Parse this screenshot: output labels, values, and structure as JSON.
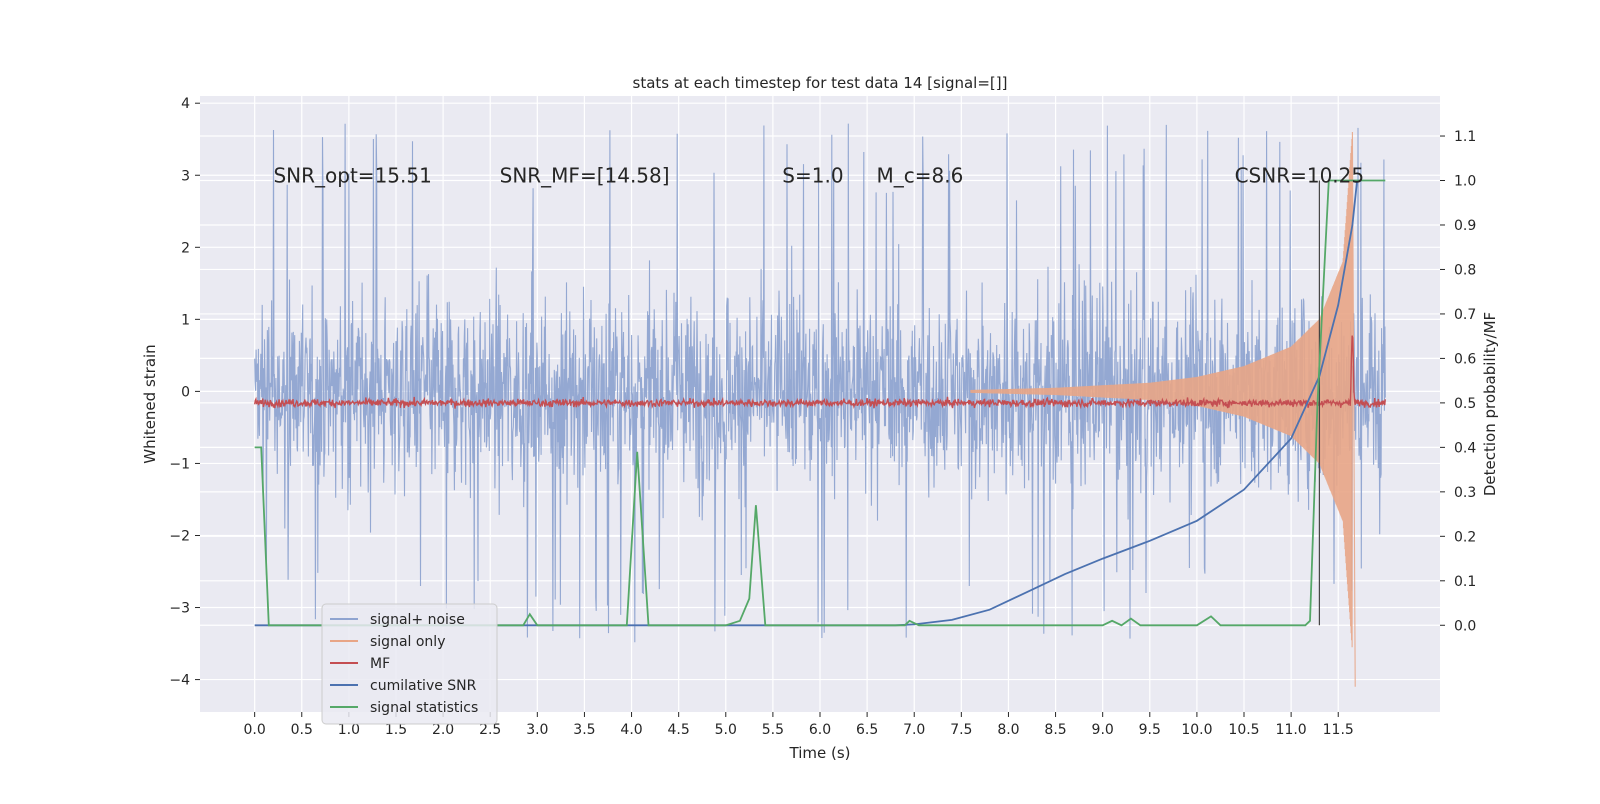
{
  "chart_data": {
    "type": "line",
    "title": "stats at each timestep for test data 14 [signal=[]]",
    "xlabel": "Time (s)",
    "ylabel_left": "Whitened strain",
    "ylabel_right": "Detection probability/MF",
    "xlim": [
      -0.58,
      12.58
    ],
    "ylim_left": [
      -4.45,
      4.1
    ],
    "ylim_right": [
      -0.195,
      1.19
    ],
    "x_ticks": [
      0.0,
      0.5,
      1.0,
      1.5,
      2.0,
      2.5,
      3.0,
      3.5,
      4.0,
      4.5,
      5.0,
      5.5,
      6.0,
      6.5,
      7.0,
      7.5,
      8.0,
      8.5,
      9.0,
      9.5,
      10.0,
      10.5,
      11.0,
      11.5
    ],
    "x_tick_labels": [
      "0.0",
      "0.5",
      "1.0",
      "1.5",
      "2.0",
      "2.5",
      "3.0",
      "3.5",
      "4.0",
      "4.5",
      "5.0",
      "5.5",
      "6.0",
      "6.5",
      "7.0",
      "7.5",
      "8.0",
      "8.5",
      "9.0",
      "9.5",
      "10.0",
      "10.5",
      "11.0",
      "11.5"
    ],
    "y_left_ticks": [
      -4,
      -3,
      -2,
      -1,
      0,
      1,
      2,
      3,
      4
    ],
    "y_left_tick_labels": [
      "−4",
      "−3",
      "−2",
      "−1",
      "0",
      "1",
      "2",
      "3",
      "4"
    ],
    "y_right_ticks": [
      0.0,
      0.1,
      0.2,
      0.3,
      0.4,
      0.5,
      0.6,
      0.7,
      0.8,
      0.9,
      1.0,
      1.1
    ],
    "y_right_tick_labels": [
      "0.0",
      "0.1",
      "0.2",
      "0.3",
      "0.4",
      "0.5",
      "0.6",
      "0.7",
      "0.8",
      "0.9",
      "1.0",
      "1.1"
    ],
    "grid": true,
    "legend_position": "lower-left",
    "annotations": [
      {
        "label": "SNR_opt=15.51",
        "x": 0.2,
        "y": 3.0
      },
      {
        "label": "SNR_MF=[14.58]",
        "x": 2.6,
        "y": 3.0
      },
      {
        "label": "S=1.0",
        "x": 5.6,
        "y": 3.0
      },
      {
        "label": "M_c=8.6",
        "x": 6.6,
        "y": 3.0
      },
      {
        "label": "CSNR=10.25",
        "x": 10.4,
        "y": 3.0
      }
    ],
    "series": [
      {
        "name": "signal+ noise",
        "axis": "left",
        "color": "#8fa4d0",
        "description_values": {
          "x_range": [
            0.0,
            12.0
          ],
          "envelope": [
            -3.5,
            3.75
          ]
        }
      },
      {
        "name": "signal only",
        "axis": "left",
        "color": "#e8a586",
        "points": [
          [
            7.6,
            0.02
          ],
          [
            8.5,
            0.05
          ],
          [
            9.5,
            0.12
          ],
          [
            10.0,
            0.2
          ],
          [
            10.5,
            0.35
          ],
          [
            11.0,
            0.62
          ],
          [
            11.3,
            1.0
          ],
          [
            11.55,
            1.8
          ],
          [
            11.65,
            3.6
          ],
          [
            11.68,
            -4.1
          ]
        ]
      },
      {
        "name": "MF",
        "axis": "right",
        "color": "#c44e52",
        "points": [
          [
            0.0,
            0.5
          ],
          [
            11.63,
            0.5
          ],
          [
            11.65,
            0.68
          ],
          [
            11.67,
            0.5
          ],
          [
            12.0,
            0.5
          ]
        ]
      },
      {
        "name": "cumilative SNR",
        "axis": "right",
        "color": "#4c72b0",
        "points": [
          [
            0.0,
            0.0
          ],
          [
            6.8,
            0.0
          ],
          [
            7.0,
            0.002
          ],
          [
            7.4,
            0.012
          ],
          [
            7.8,
            0.035
          ],
          [
            8.2,
            0.075
          ],
          [
            8.6,
            0.115
          ],
          [
            9.0,
            0.15
          ],
          [
            9.5,
            0.19
          ],
          [
            10.0,
            0.235
          ],
          [
            10.5,
            0.305
          ],
          [
            11.0,
            0.42
          ],
          [
            11.3,
            0.56
          ],
          [
            11.5,
            0.72
          ],
          [
            11.65,
            0.9
          ],
          [
            11.7,
            1.0
          ]
        ]
      },
      {
        "name": "signal statistics",
        "axis": "right",
        "color": "#55a868",
        "points": [
          [
            0.0,
            0.4
          ],
          [
            0.07,
            0.4
          ],
          [
            0.15,
            0.0
          ],
          [
            2.85,
            0.0
          ],
          [
            2.92,
            0.025
          ],
          [
            3.0,
            0.0
          ],
          [
            3.95,
            0.0
          ],
          [
            4.06,
            0.39
          ],
          [
            4.18,
            0.0
          ],
          [
            5.0,
            0.0
          ],
          [
            5.15,
            0.01
          ],
          [
            5.25,
            0.06
          ],
          [
            5.32,
            0.27
          ],
          [
            5.42,
            0.0
          ],
          [
            6.9,
            0.0
          ],
          [
            6.95,
            0.01
          ],
          [
            7.05,
            0.0
          ],
          [
            9.0,
            0.0
          ],
          [
            9.1,
            0.01
          ],
          [
            9.2,
            0.0
          ],
          [
            9.3,
            0.015
          ],
          [
            9.4,
            0.0
          ],
          [
            10.0,
            0.0
          ],
          [
            10.15,
            0.02
          ],
          [
            10.25,
            0.0
          ],
          [
            11.15,
            0.0
          ],
          [
            11.2,
            0.01
          ],
          [
            11.28,
            0.5
          ],
          [
            11.4,
            1.0
          ],
          [
            12.0,
            1.0
          ]
        ]
      }
    ]
  }
}
